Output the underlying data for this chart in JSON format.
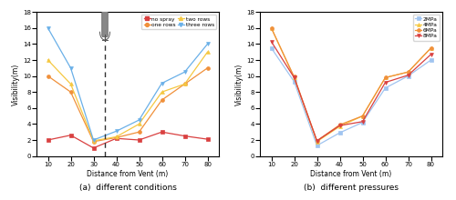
{
  "left": {
    "x": [
      10,
      20,
      30,
      40,
      50,
      60,
      70,
      80
    ],
    "no_spray": [
      2.0,
      2.6,
      1.0,
      2.2,
      2.0,
      3.0,
      2.5,
      2.1
    ],
    "one_rows": [
      10.0,
      8.0,
      1.8,
      2.3,
      3.0,
      7.0,
      9.0,
      11.0
    ],
    "two_rows": [
      12.0,
      9.0,
      1.9,
      2.4,
      4.0,
      8.0,
      9.0,
      13.0
    ],
    "three_rows": [
      16.0,
      11.0,
      2.0,
      3.1,
      4.5,
      9.1,
      10.5,
      14.0
    ],
    "colors": {
      "no_spray": "#d94040",
      "one_rows": "#f0903a",
      "two_rows": "#f5c842",
      "three_rows": "#6ab0e8"
    },
    "markers": {
      "no_spray": "s",
      "one_rows": "o",
      "two_rows": "^",
      "three_rows": "v"
    },
    "labels": [
      "no spray",
      "one rows",
      "two rows",
      "three rows"
    ],
    "dashed_x": 35,
    "xlim": [
      5,
      85
    ],
    "ylim": [
      0,
      18
    ],
    "yticks": [
      0,
      2,
      4,
      6,
      8,
      10,
      12,
      14,
      16,
      18
    ],
    "xticks": [
      10,
      20,
      30,
      40,
      50,
      60,
      70,
      80
    ],
    "xlabel": "Distance from Vent (m)",
    "ylabel": "Visibility(m)",
    "caption": "(a)  different conditions"
  },
  "right": {
    "x": [
      10,
      20,
      30,
      40,
      50,
      60,
      70,
      80
    ],
    "2MPa": [
      13.5,
      9.3,
      1.3,
      2.9,
      4.2,
      8.5,
      10.0,
      12.0
    ],
    "4MPa": [
      16.0,
      9.8,
      1.8,
      3.7,
      5.0,
      9.8,
      10.5,
      13.5
    ],
    "6MPa": [
      16.0,
      9.9,
      1.9,
      3.9,
      5.0,
      9.8,
      10.5,
      13.5
    ],
    "8MPa": [
      14.3,
      9.8,
      1.9,
      3.8,
      4.3,
      9.2,
      10.1,
      12.7
    ],
    "colors": {
      "2MPa": "#a0c4f0",
      "4MPa": "#f5c842",
      "6MPa": "#f0903a",
      "8MPa": "#d94040"
    },
    "markers": {
      "2MPa": "s",
      "4MPa": "^",
      "6MPa": "o",
      "8MPa": "v"
    },
    "labels": [
      "2MPa",
      "4MPa",
      "6MPa",
      "8MPa"
    ],
    "xlim": [
      5,
      85
    ],
    "ylim": [
      0,
      18
    ],
    "yticks": [
      0,
      2,
      4,
      6,
      8,
      10,
      12,
      14,
      16,
      18
    ],
    "xticks": [
      10,
      20,
      30,
      40,
      50,
      60,
      70,
      80
    ],
    "xlabel": "Distance from Vent (m)",
    "ylabel": "Visibility(m)",
    "caption": "(b)  different pressures"
  }
}
